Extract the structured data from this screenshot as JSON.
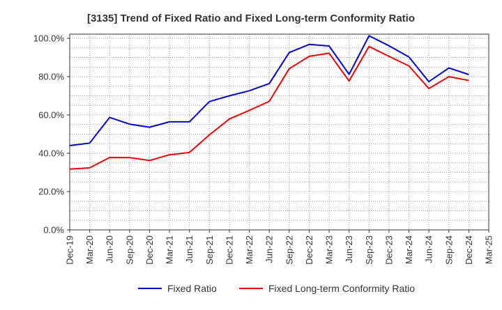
{
  "chart_data": {
    "type": "line",
    "title": "[3135]  Trend of Fixed Ratio and Fixed Long-term Conformity Ratio",
    "xlabel": "",
    "ylabel": "",
    "ylim": [
      0,
      100
    ],
    "yticks": [
      "0.0%",
      "20.0%",
      "40.0%",
      "60.0%",
      "80.0%",
      "100.0%"
    ],
    "ytick_values": [
      0,
      20,
      40,
      60,
      80,
      100
    ],
    "x": [
      "Dec-19",
      "Mar-20",
      "Jun-20",
      "Sep-20",
      "Dec-20",
      "Mar-21",
      "Jun-21",
      "Sep-21",
      "Dec-21",
      "Mar-22",
      "Jun-22",
      "Sep-22",
      "Dec-22",
      "Mar-23",
      "Jun-23",
      "Sep-23",
      "Dec-23",
      "Mar-24",
      "Jun-24",
      "Sep-24",
      "Dec-24"
    ],
    "xticks": [
      "Dec-19",
      "Mar-20",
      "Jun-20",
      "Sep-20",
      "Dec-20",
      "Mar-21",
      "Jun-21",
      "Sep-21",
      "Dec-21",
      "Mar-22",
      "Jun-22",
      "Sep-22",
      "Dec-22",
      "Mar-23",
      "Jun-23",
      "Sep-23",
      "Dec-23",
      "Mar-24",
      "Jun-24",
      "Sep-24",
      "Dec-24",
      "Mar-25"
    ],
    "grid": true,
    "legend_position": "bottom",
    "series": [
      {
        "name": "Fixed Ratio",
        "color": "#0000cc",
        "values": [
          44.0,
          45.3,
          58.7,
          55.2,
          53.6,
          56.4,
          56.4,
          67.0,
          70.0,
          72.6,
          76.4,
          92.6,
          96.8,
          96.0,
          81.2,
          101.3,
          96.1,
          90.3,
          77.4,
          84.5,
          81.1
        ]
      },
      {
        "name": "Fixed Long-term Conformity Ratio",
        "color": "#ee0000",
        "values": [
          31.7,
          32.4,
          37.8,
          37.7,
          36.2,
          39.2,
          40.4,
          49.6,
          57.9,
          62.4,
          67.1,
          84.1,
          90.6,
          92.2,
          77.7,
          95.7,
          90.6,
          85.6,
          73.8,
          80.0,
          78.0
        ]
      }
    ]
  }
}
